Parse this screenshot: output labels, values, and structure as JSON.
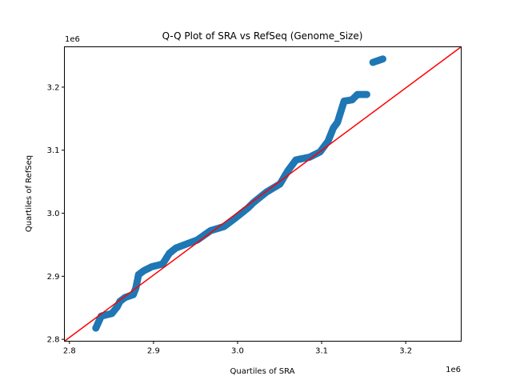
{
  "chart_data": {
    "type": "scatter",
    "title": "Q-Q Plot of SRA vs RefSeq (Genome_Size)",
    "xlabel": "Quartiles of SRA",
    "ylabel": "Quartiles of RefSeq",
    "x_offset_label": "1e6",
    "y_offset_label": "1e6",
    "xlim": [
      2.794,
      3.266
    ],
    "ylim": [
      2.797,
      3.264
    ],
    "xticks": [
      2.8,
      2.9,
      3.0,
      3.1,
      3.2
    ],
    "xtick_labels": [
      "2.8",
      "2.9",
      "3.0",
      "3.1",
      "3.2"
    ],
    "yticks": [
      2.8,
      2.9,
      3.0,
      3.1,
      3.2
    ],
    "ytick_labels": [
      "2.8",
      "2.9",
      "3.0",
      "3.1",
      "3.2"
    ],
    "grid": false,
    "point_color": "#1f77b4",
    "reference_line": {
      "type": "y=x",
      "color": "#ff0000"
    },
    "points": [
      [
        2.8314,
        2.8178
      ],
      [
        2.8378,
        2.8368
      ],
      [
        2.8505,
        2.841
      ],
      [
        2.8569,
        2.8517
      ],
      [
        2.86,
        2.8601
      ],
      [
        2.8664,
        2.8665
      ],
      [
        2.8759,
        2.8708
      ],
      [
        2.879,
        2.8813
      ],
      [
        2.8822,
        2.9025
      ],
      [
        2.8886,
        2.9089
      ],
      [
        2.8981,
        2.9152
      ],
      [
        2.9108,
        2.9194
      ],
      [
        2.9188,
        2.9363
      ],
      [
        2.9267,
        2.9449
      ],
      [
        2.9393,
        2.9512
      ],
      [
        2.9521,
        2.9576
      ],
      [
        2.9679,
        2.9724
      ],
      [
        2.9838,
        2.9788
      ],
      [
        2.9965,
        2.9915
      ],
      [
        3.0124,
        3.0084
      ],
      [
        3.0188,
        3.0169
      ],
      [
        3.0346,
        3.0338
      ],
      [
        3.0505,
        3.0465
      ],
      [
        3.06,
        3.0677
      ],
      [
        3.0695,
        3.0846
      ],
      [
        3.0854,
        3.0888
      ],
      [
        3.0981,
        3.0973
      ],
      [
        3.1076,
        3.1142
      ],
      [
        3.114,
        3.1355
      ],
      [
        3.1188,
        3.144
      ],
      [
        3.1267,
        3.1778
      ],
      [
        3.1362,
        3.1799
      ],
      [
        3.1426,
        3.1884
      ],
      [
        3.1536,
        3.1884
      ],
      [
        3.161,
        3.2393
      ],
      [
        3.1727,
        3.2447
      ]
    ]
  }
}
